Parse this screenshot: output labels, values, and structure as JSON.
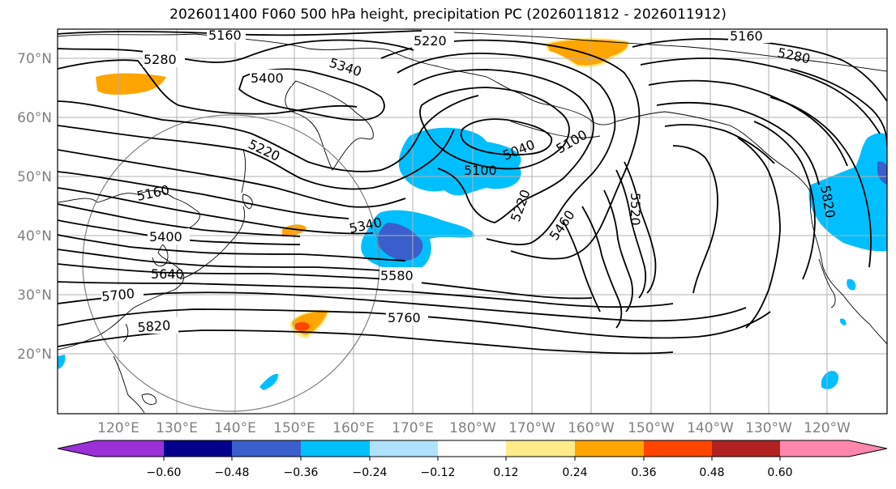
{
  "title": "2026011400 F060 500 hPa height, precipitation PC (2026011812 - 2026011912)",
  "map": {
    "lat_labels": [
      "70°N",
      "60°N",
      "50°N",
      "40°N",
      "30°N",
      "20°N"
    ],
    "lon_labels": [
      "120°E",
      "130°E",
      "140°E",
      "150°E",
      "160°E",
      "170°E",
      "180°W",
      "170°W",
      "160°W",
      "150°W",
      "140°W",
      "130°W",
      "120°W"
    ],
    "contour_labels": [
      "5160",
      "5220",
      "5280",
      "5400",
      "5340",
      "5220",
      "5160",
      "5400",
      "5640",
      "5700",
      "5820",
      "5340",
      "5580",
      "5760",
      "5040",
      "5100",
      "5100",
      "5220",
      "5460",
      "5520",
      "5160",
      "5280",
      "5820"
    ],
    "colors": {
      "ocean_bg": "#ffffff",
      "coast": "#000000",
      "grid": "#b0b0b0",
      "circle": "#808080",
      "contour": "#000000"
    }
  },
  "colorbar": {
    "tick_labels": [
      "−0.60",
      "−0.48",
      "−0.36",
      "−0.24",
      "−0.12",
      "0.12",
      "0.24",
      "0.36",
      "0.48",
      "0.60"
    ],
    "colors": [
      "#9b30d9",
      "#00008b",
      "#3a5fcd",
      "#00bfff",
      "#b0e2ff",
      "#ffffff",
      "#ffeb8a",
      "#ffa500",
      "#ff4500",
      "#b22222",
      "#ff87ab"
    ]
  }
}
